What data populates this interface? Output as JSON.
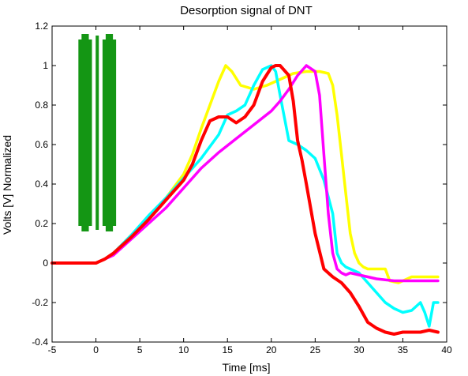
{
  "chart_data": {
    "type": "line",
    "title": "Desorption signal of DNT",
    "xlabel": "Time [ms]",
    "ylabel": "Volts [V] Normalized",
    "xlim": [
      -5,
      40
    ],
    "ylim": [
      -0.4,
      1.2
    ],
    "xticks": [
      -5,
      0,
      5,
      10,
      15,
      20,
      25,
      30,
      35,
      40
    ],
    "yticks": [
      -0.4,
      -0.2,
      0,
      0.2,
      0.4,
      0.6,
      0.8,
      1,
      1.2
    ],
    "ytick_labels": [
      "-0.4",
      "-0.2",
      "0",
      "0.2",
      "0.4",
      "0.6",
      "0.8",
      "1",
      "1.2"
    ],
    "grid": false,
    "legend": "none",
    "inset_graphic": {
      "description_colors": {
        "fill": "#149614",
        "stroke": "#0f7a0f"
      },
      "x_range": [
        -2,
        2.3
      ],
      "y_range": [
        0.16,
        1.16
      ]
    },
    "series": [
      {
        "color": "#ffff00",
        "x": [
          -5,
          0,
          1,
          2,
          4,
          6,
          8,
          10,
          11,
          12,
          13,
          14,
          14.8,
          15.5,
          16.5,
          18,
          19.5,
          21,
          22.5,
          24,
          25.5,
          26.5,
          27,
          27.5,
          28,
          28.5,
          29,
          29.5,
          30,
          30.5,
          31,
          33,
          33.5,
          34.5,
          36,
          38,
          39
        ],
        "y": [
          0,
          0,
          0.02,
          0.05,
          0.14,
          0.23,
          0.33,
          0.45,
          0.55,
          0.68,
          0.8,
          0.92,
          1.0,
          0.97,
          0.9,
          0.88,
          0.9,
          0.93,
          0.96,
          0.97,
          0.97,
          0.96,
          0.9,
          0.75,
          0.55,
          0.35,
          0.15,
          0.05,
          0.0,
          -0.02,
          -0.03,
          -0.03,
          -0.09,
          -0.1,
          -0.07,
          -0.07,
          -0.07
        ]
      },
      {
        "color": "#00ffff",
        "x": [
          -5,
          0,
          1,
          2,
          4,
          6,
          8,
          10,
          12,
          14,
          15,
          16,
          17,
          18,
          19,
          20,
          20.5,
          21,
          22,
          23,
          24,
          25,
          26,
          27,
          27.5,
          28,
          28.5,
          29,
          30,
          31,
          32,
          33,
          34,
          35,
          36,
          37,
          37.5,
          38,
          38.5,
          39
        ],
        "y": [
          0,
          0,
          0.02,
          0.05,
          0.14,
          0.24,
          0.33,
          0.43,
          0.53,
          0.65,
          0.75,
          0.77,
          0.8,
          0.9,
          0.98,
          1.0,
          0.97,
          0.85,
          0.62,
          0.6,
          0.57,
          0.53,
          0.42,
          0.25,
          0.05,
          0.0,
          -0.02,
          -0.03,
          -0.05,
          -0.1,
          -0.15,
          -0.2,
          -0.23,
          -0.25,
          -0.24,
          -0.2,
          -0.25,
          -0.32,
          -0.2,
          -0.2
        ]
      },
      {
        "color": "#ff00ff",
        "x": [
          -5,
          0,
          1,
          2,
          4,
          6,
          8,
          10,
          12,
          14,
          16,
          18,
          20,
          21,
          22,
          23,
          24,
          25,
          25.5,
          26,
          26.5,
          27,
          27.5,
          28,
          28.5,
          29,
          30,
          31,
          32,
          34,
          36,
          38,
          39
        ],
        "y": [
          0,
          0,
          0.02,
          0.04,
          0.12,
          0.2,
          0.28,
          0.38,
          0.48,
          0.56,
          0.63,
          0.7,
          0.77,
          0.82,
          0.88,
          0.95,
          1.0,
          0.97,
          0.85,
          0.55,
          0.25,
          0.05,
          -0.03,
          -0.05,
          -0.06,
          -0.05,
          -0.06,
          -0.07,
          -0.08,
          -0.09,
          -0.09,
          -0.09,
          -0.09
        ]
      },
      {
        "color": "#ff0000",
        "x": [
          -5,
          0,
          1,
          2,
          4,
          6,
          8,
          10,
          11,
          12,
          13,
          14,
          15,
          16,
          17,
          18,
          19,
          20,
          20.5,
          21,
          22,
          22.5,
          23,
          23.5,
          24,
          25,
          26,
          27,
          28,
          29,
          30,
          31,
          32,
          33,
          34,
          35,
          36,
          37,
          38,
          39
        ],
        "y": [
          0,
          0,
          0.02,
          0.05,
          0.13,
          0.22,
          0.32,
          0.42,
          0.5,
          0.62,
          0.72,
          0.74,
          0.74,
          0.71,
          0.74,
          0.8,
          0.92,
          0.99,
          1.0,
          1.0,
          0.95,
          0.82,
          0.62,
          0.52,
          0.4,
          0.15,
          -0.03,
          -0.07,
          -0.1,
          -0.15,
          -0.22,
          -0.3,
          -0.33,
          -0.35,
          -0.36,
          -0.35,
          -0.35,
          -0.35,
          -0.34,
          -0.35
        ]
      }
    ]
  }
}
